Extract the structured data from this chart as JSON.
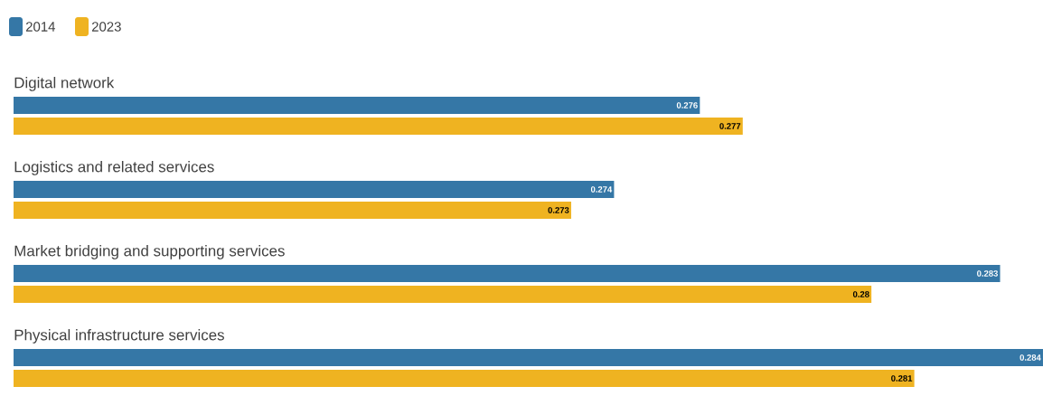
{
  "chart_data": {
    "type": "bar",
    "orientation": "horizontal",
    "categories": [
      "Digital network",
      "Logistics and related services",
      "Market bridging and supporting services",
      "Physical infrastructure services"
    ],
    "series": [
      {
        "name": "2014",
        "color": "#3577a6",
        "values": [
          0.276,
          0.274,
          0.283,
          0.284
        ]
      },
      {
        "name": "2023",
        "color": "#efb321",
        "values": [
          0.277,
          0.273,
          0.28,
          0.281
        ]
      }
    ],
    "xlim": [
      0.26,
      0.284
    ],
    "data_labels": true,
    "legend": "top left"
  }
}
